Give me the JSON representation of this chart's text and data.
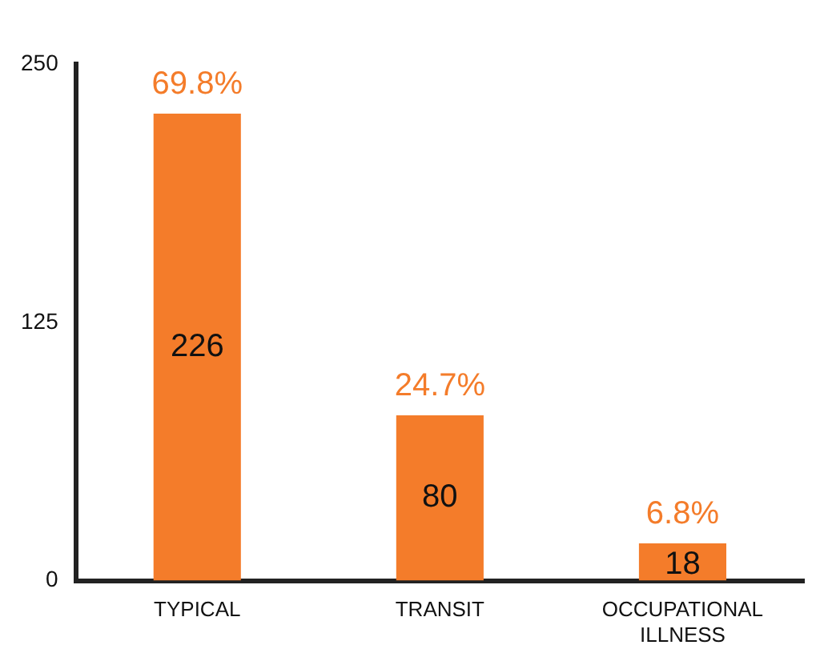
{
  "chart_data": {
    "type": "bar",
    "categories": [
      "TYPICAL",
      "TRANSIT",
      "OCCUPATIONAL ILLNESS"
    ],
    "series": [
      {
        "color": "#f47c2a",
        "values": [
          226,
          80,
          18
        ]
      }
    ],
    "ylim": [
      0,
      250
    ],
    "yticks": [
      0,
      125,
      250
    ],
    "grid": false,
    "legend": false,
    "data_labels": true,
    "annotations": [
      {
        "text": "69.8%",
        "x": "TYPICAL",
        "y": 226
      },
      {
        "text": "24.7%",
        "x": "TRANSIT",
        "y": 80
      },
      {
        "text": "6.8%",
        "x": "OCCUPATIONAL ILLNESS",
        "y": 18
      }
    ]
  }
}
